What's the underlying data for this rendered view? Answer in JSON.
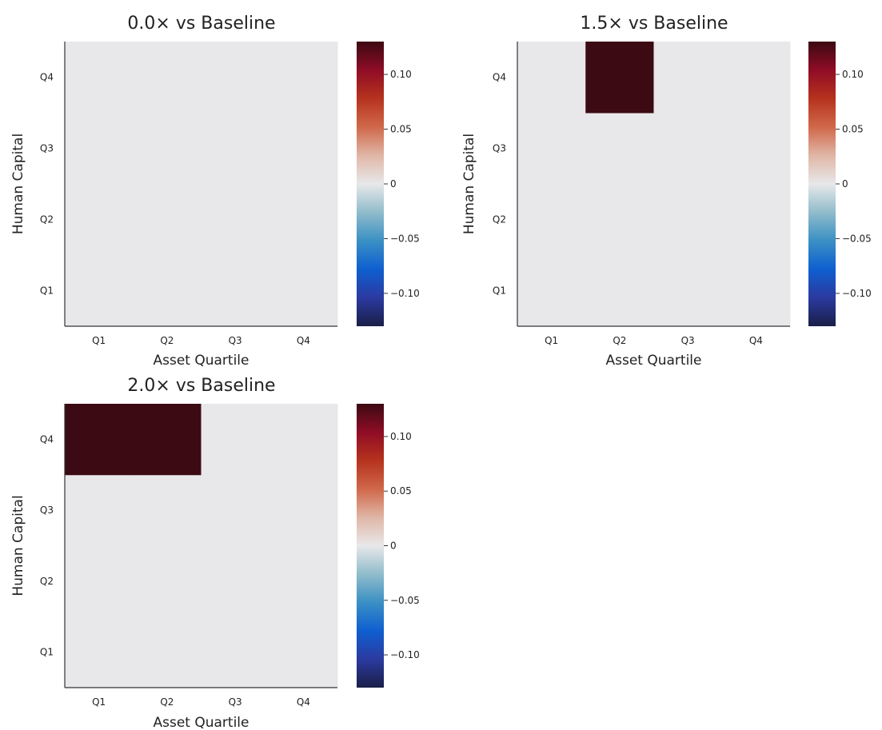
{
  "chart_data": [
    {
      "type": "heatmap",
      "title": "0.0× vs Baseline",
      "xlabel": "Asset Quartile",
      "ylabel": "Human Capital",
      "x_categories": [
        "Q1",
        "Q2",
        "Q3",
        "Q4"
      ],
      "y_categories": [
        "Q1",
        "Q2",
        "Q3",
        "Q4"
      ],
      "values": [
        [
          0,
          0,
          0,
          0
        ],
        [
          0,
          0,
          0,
          0
        ],
        [
          0,
          0,
          0,
          0
        ],
        [
          0,
          0,
          0,
          0
        ]
      ],
      "colorbar": {
        "range": [
          -0.13,
          0.13
        ],
        "ticks": [
          -0.1,
          -0.05,
          0,
          0.05,
          0.1
        ],
        "tick_labels": [
          "−0.10",
          "−0.05",
          "0",
          "0.05",
          "0.10"
        ]
      }
    },
    {
      "type": "heatmap",
      "title": "1.5× vs Baseline",
      "xlabel": "Asset Quartile",
      "ylabel": "Human Capital",
      "x_categories": [
        "Q1",
        "Q2",
        "Q3",
        "Q4"
      ],
      "y_categories": [
        "Q1",
        "Q2",
        "Q3",
        "Q4"
      ],
      "values": [
        [
          0,
          0,
          0,
          0
        ],
        [
          0,
          0,
          0,
          0
        ],
        [
          0,
          0,
          0,
          0
        ],
        [
          0,
          0.13,
          0,
          0
        ]
      ],
      "colorbar": {
        "range": [
          -0.13,
          0.13
        ],
        "ticks": [
          -0.1,
          -0.05,
          0,
          0.05,
          0.1
        ],
        "tick_labels": [
          "−0.10",
          "−0.05",
          "0",
          "0.05",
          "0.10"
        ]
      }
    },
    {
      "type": "heatmap",
      "title": "2.0× vs Baseline",
      "xlabel": "Asset Quartile",
      "ylabel": "Human Capital",
      "x_categories": [
        "Q1",
        "Q2",
        "Q3",
        "Q4"
      ],
      "y_categories": [
        "Q1",
        "Q2",
        "Q3",
        "Q4"
      ],
      "values": [
        [
          0,
          0,
          0,
          0
        ],
        [
          0,
          0,
          0,
          0
        ],
        [
          0,
          0,
          0,
          0
        ],
        [
          0.13,
          0.13,
          0,
          0
        ]
      ],
      "colorbar": {
        "range": [
          -0.13,
          0.13
        ],
        "ticks": [
          -0.1,
          -0.05,
          0,
          0.05,
          0.1
        ],
        "tick_labels": [
          "−0.10",
          "−0.05",
          "0",
          "0.05",
          "0.10"
        ]
      }
    }
  ],
  "colormap": [
    "#1a1f47",
    "#2b3aa0",
    "#0f5fd0",
    "#3a90c4",
    "#90bccb",
    "#e8e8ea",
    "#e0b6a6",
    "#d0684a",
    "#b6331e",
    "#8f0c26",
    "#3c0a12"
  ]
}
